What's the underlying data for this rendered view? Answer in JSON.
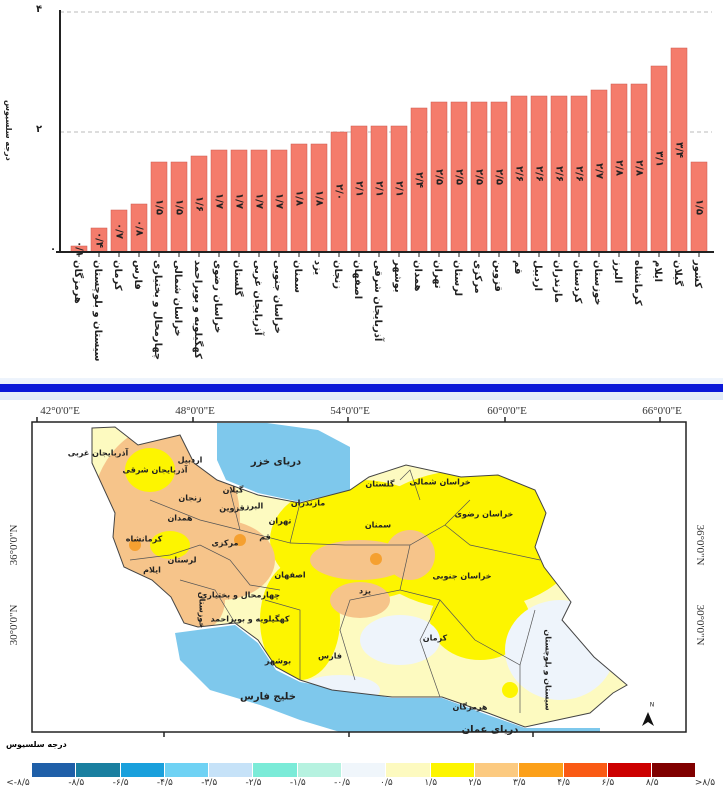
{
  "chart_data": {
    "type": "bar",
    "ylabel": "درجه سلسیوس",
    "ylim": [
      0,
      4
    ],
    "y_ticks": [
      "۰",
      "۲",
      "۴"
    ],
    "y_tick_values": [
      0,
      2,
      4
    ],
    "grid": "horizontal dashed",
    "bar_color": "#f47c6c",
    "categories": [
      "هرمزگان",
      "سیستان و بلوچستان",
      "کرمان",
      "فارس",
      "چهارمحال و بختیاری",
      "خراسان شمالی",
      "کهگیلویه و بویراحمد",
      "خراسان رضوی",
      "گلستان",
      "آذربایجان غربی",
      "خراسان جنوبی",
      "سمنان",
      "یزد",
      "زنجان",
      "اصفهان",
      "آذربایجان شرقی",
      "بوشهر",
      "همدان",
      "تهران",
      "لرستان",
      "مرکزی",
      "قزوین",
      "قم",
      "اردبیل",
      "مازندران",
      "کردستان",
      "خوزستان",
      "البرز",
      "کرمانشاه",
      "ایلام",
      "گیلان",
      "کشور"
    ],
    "values": [
      0.1,
      0.4,
      0.7,
      0.8,
      1.5,
      1.5,
      1.6,
      1.7,
      1.7,
      1.7,
      1.7,
      1.8,
      1.8,
      2.0,
      2.1,
      2.1,
      2.1,
      2.4,
      2.5,
      2.5,
      2.5,
      2.5,
      2.6,
      2.6,
      2.6,
      2.6,
      2.7,
      2.8,
      2.8,
      3.1,
      3.4,
      1.5
    ],
    "value_labels": [
      "۰/۱",
      "۰/۴",
      "۰/۷",
      "۰/۸",
      "۱/۵",
      "۱/۵",
      "۱/۶",
      "۱/۷",
      "۱/۷",
      "۱/۷",
      "۱/۷",
      "۱/۸",
      "۱/۸",
      "۲/۰",
      "۲/۱",
      "۲/۱",
      "۲/۱",
      "۲/۴",
      "۲/۵",
      "۲/۵",
      "۲/۵",
      "۲/۵",
      "۲/۶",
      "۲/۶",
      "۲/۶",
      "۲/۶",
      "۲/۷",
      "۲/۸",
      "۲/۸",
      "۳/۱",
      "۳/۴",
      "۱/۵"
    ]
  },
  "map": {
    "longitudes": [
      "42°0'0\"E",
      "48°0'0\"E",
      "54°0'0\"E",
      "60°0'0\"E",
      "66°0'0\"E"
    ],
    "latitudes": [
      "36°0'0\"N",
      "30°0'0\"N"
    ],
    "seas": {
      "caspian": "دریای خزر",
      "gulf": "خلیج فارس",
      "oman": "دریای عمان"
    },
    "provinces": [
      "آذربایجان غربی",
      "آذربایجان شرقی",
      "اردبیل",
      "زنجان",
      "گیلان",
      "قزوین",
      "البرز",
      "تهران",
      "مازندران",
      "گلستان",
      "خراسان شمالی",
      "خراسان رضوی",
      "سمنان",
      "کرمانشاه",
      "همدان",
      "مرکزی",
      "قم",
      "لرستان",
      "ایلام",
      "اصفهان",
      "خراسان جنوبی",
      "یزد",
      "چهارمحال و بختیاری",
      "کهگیلویه و بویراحمد",
      "خوزستان",
      "کرمان",
      "فارس",
      "بوشهر",
      "هرمزگان",
      "سیستان و بلوچستان",
      "کردستان"
    ],
    "north_label": "N",
    "colors": {
      "sea": "#7ec8ec",
      "base": "#fdfac0",
      "yellow": "#fdf500",
      "tan": "#f6c48a",
      "pale_blue": "#eef4fb",
      "orange": "#f5a030"
    }
  },
  "legend": {
    "title": "درجه سلسیوس",
    "colors": [
      "#1f5fa8",
      "#1a7fa0",
      "#1aa0dc",
      "#6fd2f4",
      "#c6e2f8",
      "#7bebd8",
      "#b6f2e0",
      "#f0f6fb",
      "#fdfac0",
      "#fdf500",
      "#fcca80",
      "#fca01a",
      "#fa5a14",
      "#cc0000",
      "#800000"
    ],
    "labels": [
      "<-۸/۵",
      "-۸/۵",
      "-۶/۵",
      "-۴/۵",
      "-۳/۵",
      "-۲/۵",
      "-۱/۵",
      "-۰/۵",
      "۰/۵",
      "۱/۵",
      "۲/۵",
      "۳/۵",
      "۴/۵",
      "۶/۵",
      "۸/۵",
      ">۸/۵"
    ]
  }
}
